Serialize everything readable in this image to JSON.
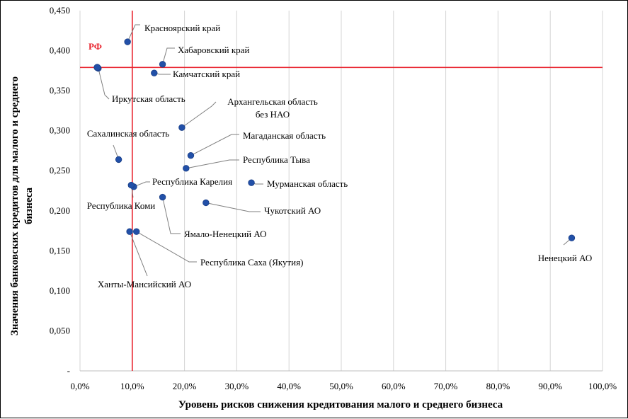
{
  "chart_data": {
    "type": "scatter",
    "title": "",
    "xlabel": "Уровень рисков снижения кредитования малого и среднего бизнеса",
    "ylabel": [
      "Значения банковских кредитов для малого и среднего",
      "бизнеса"
    ],
    "xlim": [
      0,
      100
    ],
    "ylim": [
      0,
      0.45
    ],
    "x_ticks": [
      0,
      10,
      20,
      30,
      40,
      50,
      60,
      70,
      80,
      90,
      100
    ],
    "x_tick_labels": [
      "0,0%",
      "10,0%",
      "20,0%",
      "30,0%",
      "40,0%",
      "50,0%",
      "60,0%",
      "70,0%",
      "80,0%",
      "90,0%",
      "100,0%"
    ],
    "y_ticks": [
      0,
      0.05,
      0.1,
      0.15,
      0.2,
      0.25,
      0.3,
      0.35,
      0.4,
      0.45
    ],
    "y_tick_labels": [
      "-",
      "0,050",
      "0,100",
      "0,150",
      "0,200",
      "0,250",
      "0,300",
      "0,350",
      "0,400",
      "0,450"
    ],
    "grid": "vertical",
    "point_color": "#2250a8",
    "reference_color": "#e8212b",
    "reference": {
      "label": "РФ",
      "x": 10.0,
      "y": 0.379
    },
    "points": [
      {
        "label": "Красноярский край",
        "x": 9.1,
        "y": 0.411
      },
      {
        "label": "Хабаровский край",
        "x": 15.8,
        "y": 0.383
      },
      {
        "label": "Камчатский край",
        "x": 14.2,
        "y": 0.372
      },
      {
        "label": "Иркутская область",
        "x": 3.5,
        "y": 0.378
      },
      {
        "label": "Архангельская область\nбез НАО",
        "x": 19.5,
        "y": 0.304
      },
      {
        "label": "Магаданская область",
        "x": 21.2,
        "y": 0.269
      },
      {
        "label": "Сахалинская область",
        "x": 7.4,
        "y": 0.264
      },
      {
        "label": "Республика Тыва",
        "x": 20.3,
        "y": 0.253
      },
      {
        "label": "Мурманская область",
        "x": 32.8,
        "y": 0.235
      },
      {
        "label": "Республика Карелия",
        "x": 10.3,
        "y": 0.23
      },
      {
        "label": "Республика Коми",
        "x": 9.8,
        "y": 0.232
      },
      {
        "label": "Ямало-Ненецкий АО",
        "x": 15.8,
        "y": 0.217
      },
      {
        "label": "Чукотский АО",
        "x": 24.1,
        "y": 0.21
      },
      {
        "label": "Ханты-Мансийский АО",
        "x": 9.5,
        "y": 0.174
      },
      {
        "label": "Республика Саха (Якутия)",
        "x": 10.8,
        "y": 0.174
      },
      {
        "label": "Ненецкий АО",
        "x": 94.1,
        "y": 0.166
      }
    ]
  }
}
